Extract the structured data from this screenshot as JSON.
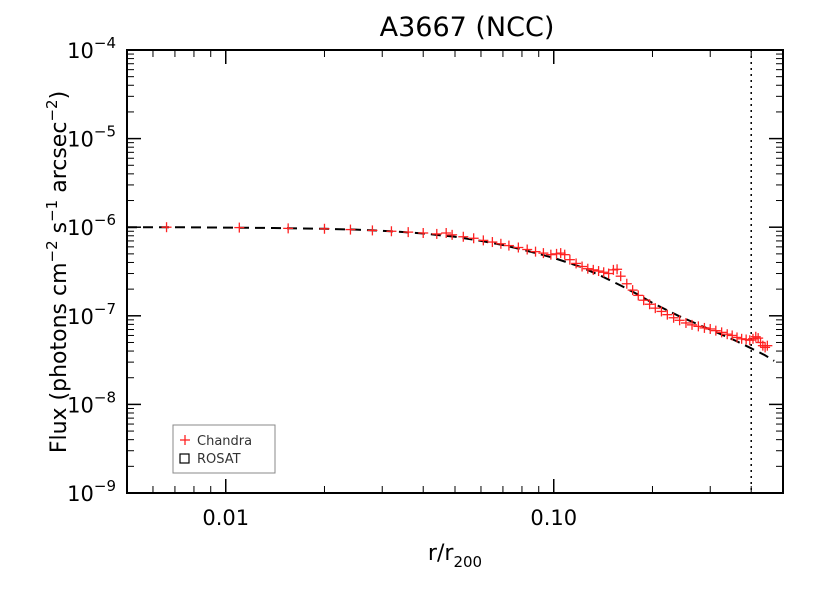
{
  "chart_data": {
    "type": "scatter",
    "title": "A3667 (NCC)",
    "xlabel": "r/r",
    "xlabel_sub": "200",
    "ylabel": "Flux (photons cm",
    "ylabel_parts": [
      "Flux (photons cm",
      "−2",
      " s",
      "−1",
      " arcsec",
      "−2",
      ")"
    ],
    "x_scale": "log",
    "y_scale": "log",
    "xlim": [
      0.005,
      0.5
    ],
    "ylim": [
      1e-09,
      0.0001
    ],
    "x_ticks": [
      0.01,
      0.1
    ],
    "x_tick_labels": [
      "0.01",
      "0.10"
    ],
    "y_ticks": [
      1e-09,
      1e-08,
      1e-07,
      1e-06,
      1e-05,
      0.0001
    ],
    "y_tick_labels": [
      {
        "base": "10",
        "exp": "−9"
      },
      {
        "base": "10",
        "exp": "−8"
      },
      {
        "base": "10",
        "exp": "−7"
      },
      {
        "base": "10",
        "exp": "−6"
      },
      {
        "base": "10",
        "exp": "−5"
      },
      {
        "base": "10",
        "exp": "−4"
      }
    ],
    "vline_x": 0.4,
    "grid": false,
    "legend_position": "bottom-left",
    "legend": [
      {
        "name": "Chandra",
        "marker": "plus",
        "color": "#ff2222"
      },
      {
        "name": "ROSAT",
        "marker": "square",
        "color": "#000000"
      }
    ],
    "series": [
      {
        "name": "Chandra",
        "marker": "plus",
        "color": "#ff2222",
        "x": [
          0.0066,
          0.011,
          0.0155,
          0.02,
          0.024,
          0.028,
          0.032,
          0.036,
          0.04,
          0.044,
          0.047,
          0.049,
          0.053,
          0.057,
          0.061,
          0.065,
          0.069,
          0.073,
          0.078,
          0.083,
          0.088,
          0.093,
          0.098,
          0.102,
          0.105,
          0.108,
          0.112,
          0.117,
          0.122,
          0.127,
          0.132,
          0.137,
          0.142,
          0.147,
          0.152,
          0.156,
          0.16,
          0.167,
          0.174,
          0.181,
          0.188,
          0.196,
          0.204,
          0.213,
          0.222,
          0.232,
          0.242,
          0.253,
          0.264,
          0.276,
          0.288,
          0.3,
          0.312,
          0.325,
          0.338,
          0.35,
          0.362,
          0.374,
          0.386,
          0.396,
          0.405,
          0.413,
          0.42,
          0.427,
          0.434,
          0.441,
          0.448
        ],
        "y": [
          1e-06,
          9.9e-07,
          9.7e-07,
          9.6e-07,
          9.4e-07,
          9.2e-07,
          9e-07,
          8.8e-07,
          8.6e-07,
          8.4e-07,
          8.6e-07,
          8.2e-07,
          7.8e-07,
          7.5e-07,
          7.1e-07,
          6.8e-07,
          6.5e-07,
          6.2e-07,
          5.9e-07,
          5.6e-07,
          5.3e-07,
          5.1e-07,
          4.9e-07,
          5e-07,
          5.1e-07,
          4.9e-07,
          4.3e-07,
          3.9e-07,
          3.6e-07,
          3.4e-07,
          3.3e-07,
          3.2e-07,
          3.1e-07,
          3e-07,
          3.3e-07,
          3.35e-07,
          2.8e-07,
          2.3e-07,
          1.95e-07,
          1.7e-07,
          1.5e-07,
          1.35e-07,
          1.22e-07,
          1.12e-07,
          1.03e-07,
          9.5e-08,
          8.9e-08,
          8.3e-08,
          7.9e-08,
          7.6e-08,
          7.3e-08,
          7.1e-08,
          6.8e-08,
          6.5e-08,
          6.2e-08,
          6e-08,
          5.7e-08,
          5.5e-08,
          5.4e-08,
          5.3e-08,
          5.5e-08,
          5.8e-08,
          5.6e-08,
          5e-08,
          4.6e-08,
          4.4e-08,
          4.6e-08
        ]
      },
      {
        "name": "ROSAT",
        "marker": "square",
        "color": "#000000",
        "x": [],
        "y": []
      }
    ],
    "model_line": {
      "style": "dashed",
      "color": "#000000",
      "x": [
        0.005,
        0.007,
        0.01,
        0.014,
        0.02,
        0.025,
        0.03,
        0.035,
        0.04,
        0.05,
        0.06,
        0.07,
        0.08,
        0.09,
        0.1,
        0.12,
        0.14,
        0.16,
        0.18,
        0.2,
        0.24,
        0.28,
        0.32,
        0.36,
        0.4,
        0.44,
        0.47
      ],
      "y": [
        1e-06,
        1e-06,
        9.9e-07,
        9.8e-07,
        9.6e-07,
        9.4e-07,
        9.1e-07,
        8.8e-07,
        8.5e-07,
        7.8e-07,
        7e-07,
        6.3e-07,
        5.6e-07,
        5e-07,
        4.5e-07,
        3.6e-07,
        2.8e-07,
        2.2e-07,
        1.75e-07,
        1.4e-07,
        1e-07,
        7.8e-08,
        6.3e-08,
        5.2e-08,
        4.3e-08,
        3.6e-08,
        3.1e-08
      ]
    }
  }
}
